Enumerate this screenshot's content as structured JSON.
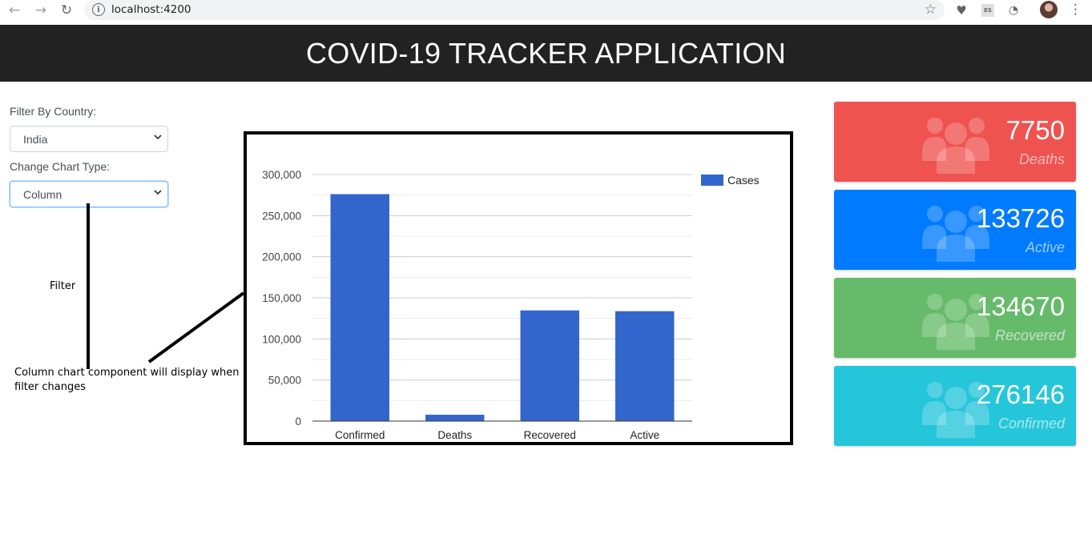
{
  "browser": {
    "url": "localhost:4200",
    "extension_badge": "ES"
  },
  "header": {
    "title": "COVID-19 TRACKER APPLICATION"
  },
  "filters": {
    "country_label": "Filter By Country:",
    "country_value": "India",
    "chart_type_label": "Change Chart Type:",
    "chart_type_value": "Column"
  },
  "annotations": {
    "filter_note": "Filter",
    "chart_note_line1": "Column chart component will display when",
    "chart_note_line2": "filter changes"
  },
  "chart_data": {
    "type": "bar",
    "categories": [
      "Confirmed",
      "Deaths",
      "Recovered",
      "Active"
    ],
    "series": [
      {
        "name": "Cases",
        "values": [
          276146,
          7750,
          134670,
          133726
        ],
        "color": "#3366cc"
      }
    ],
    "ylim": [
      0,
      300000
    ],
    "yticks": [
      0,
      50000,
      100000,
      150000,
      200000,
      250000,
      300000
    ],
    "ytick_labels": [
      "0",
      "50,000",
      "100,000",
      "150,000",
      "200,000",
      "250,000",
      "300,000"
    ],
    "grid": true,
    "legend": "top-right"
  },
  "cards": [
    {
      "value": "7750",
      "label": "Deaths",
      "color": "#ef5350",
      "icon": "users-icon"
    },
    {
      "value": "133726",
      "label": "Active",
      "color": "#007bff",
      "icon": "users-icon"
    },
    {
      "value": "134670",
      "label": "Recovered",
      "color": "#66bb6a",
      "icon": "users-icon"
    },
    {
      "value": "276146",
      "label": "Confirmed",
      "color": "#26c6da",
      "icon": "users-icon"
    }
  ]
}
